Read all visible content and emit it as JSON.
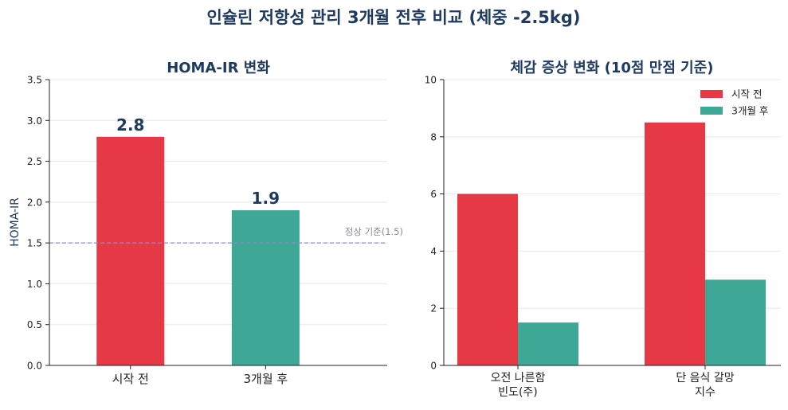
{
  "figure_title": "인슐린 저항성 관리 3개월 전후 비교 (체중 -2.5kg)",
  "colors": {
    "before": "#e63946",
    "after": "#3fa796",
    "title": "#1f3a5f",
    "ref_line": "#8e8ec0",
    "ref_text": "#8a8a9a",
    "axis": "#222222",
    "grid": "#e8e8ee"
  },
  "chart_data": [
    {
      "type": "bar",
      "title": "HOMA-IR 변화",
      "xlabel": "",
      "ylabel": "HOMA-IR",
      "ylim": [
        0,
        3.5
      ],
      "yticks": [
        0.0,
        0.5,
        1.0,
        1.5,
        2.0,
        2.5,
        3.0,
        3.5
      ],
      "ytick_labels": [
        "0.0",
        "0.5",
        "1.0",
        "1.5",
        "2.0",
        "2.5",
        "3.0",
        "3.5"
      ],
      "categories": [
        "시작 전",
        "3개월 후"
      ],
      "values": [
        2.8,
        1.9
      ],
      "value_labels": [
        "2.8",
        "1.9"
      ],
      "bar_colors": [
        "before",
        "after"
      ],
      "reference_line": {
        "value": 1.5,
        "label": "정상 기준(1.5)"
      },
      "grid": true
    },
    {
      "type": "bar",
      "title": "체감 증상 변화 (10점 만점 기준)",
      "xlabel": "",
      "ylabel": "",
      "ylim": [
        0,
        10
      ],
      "yticks": [
        0,
        2,
        4,
        6,
        8,
        10
      ],
      "ytick_labels": [
        "0",
        "2",
        "4",
        "6",
        "8",
        "10"
      ],
      "categories": [
        [
          "오전 나른함",
          "빈도(주)"
        ],
        [
          "단 음식 갈망",
          "지수"
        ]
      ],
      "series": [
        {
          "name": "시작 전",
          "values": [
            6,
            8.5
          ],
          "color": "before"
        },
        {
          "name": "3개월 후",
          "values": [
            1.5,
            3
          ],
          "color": "after"
        }
      ],
      "legend": "top-right",
      "grid": true
    }
  ]
}
